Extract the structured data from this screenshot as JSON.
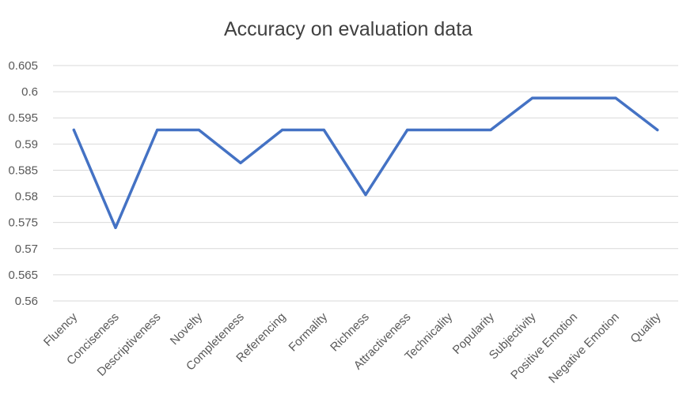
{
  "chart_data": {
    "type": "line",
    "title": "Accuracy on evaluation data",
    "xlabel": "",
    "ylabel": "",
    "categories": [
      "Fluency",
      "Conciseness",
      "Descriptiveness",
      "Novelty",
      "Completeness",
      "Referencing",
      "Formality",
      "Richness",
      "Attractiveness",
      "Technicality",
      "Popularity",
      "Subjectivity",
      "Positive Emotion",
      "Negative Emotion",
      "Quality"
    ],
    "series": [
      {
        "values": [
          0.5927,
          0.574,
          0.5927,
          0.5927,
          0.5864,
          0.5927,
          0.5927,
          0.5803,
          0.5927,
          0.5927,
          0.5927,
          0.5988,
          0.5988,
          0.5988,
          0.5927
        ],
        "color": "#4472c4"
      }
    ],
    "ylim": [
      0.56,
      0.605
    ],
    "yticks": [
      "0.56",
      "0.565",
      "0.57",
      "0.575",
      "0.58",
      "0.585",
      "0.59",
      "0.595",
      "0.6",
      "0.605"
    ],
    "grid": true,
    "legend": "none"
  }
}
